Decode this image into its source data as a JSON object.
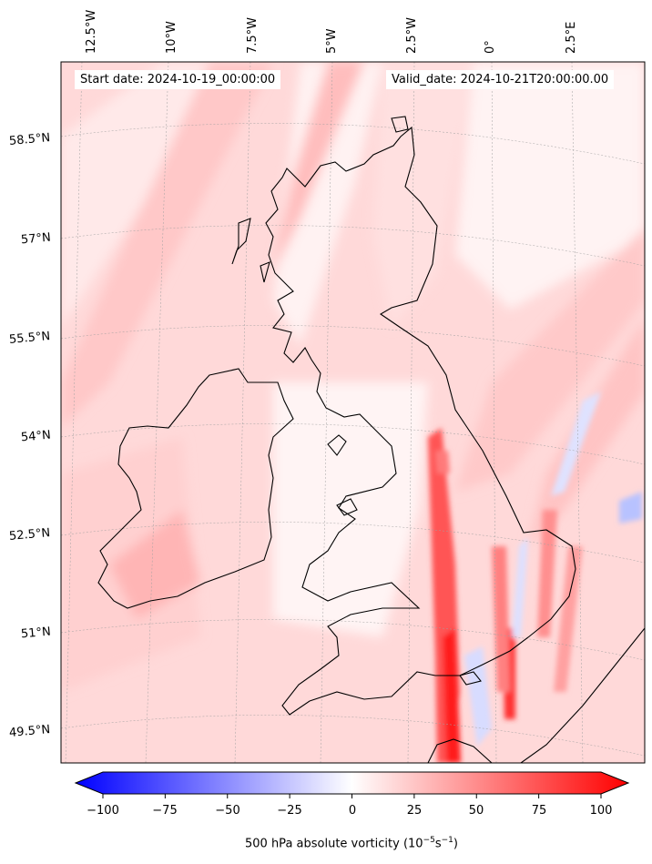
{
  "map": {
    "start_date": "Start date: 2024-10-19_00:00:00",
    "valid_date": "Valid_date: 2024-10-21T20:00:00.00",
    "lon_labels": [
      "12.5°W",
      "10°W",
      "7.5°W",
      "5°W",
      "2.5°W",
      "0°",
      "2.5°E"
    ],
    "lat_labels": [
      "58.5°N",
      "57°N",
      "55.5°N",
      "54°N",
      "52.5°N",
      "51°N",
      "49.5°N"
    ]
  },
  "colorbar": {
    "ticks": [
      "−100",
      "−75",
      "−50",
      "−25",
      "0",
      "25",
      "50",
      "75",
      "100"
    ],
    "label_main": "500 hPa absolute vorticity (10",
    "label_exp1": "−5",
    "label_mid": "s",
    "label_exp2": "−1",
    "label_end": ")",
    "min": -100,
    "max": 100,
    "colors": {
      "low": "#0000ff",
      "mid": "#ffffff",
      "high": "#ff0000"
    }
  }
}
